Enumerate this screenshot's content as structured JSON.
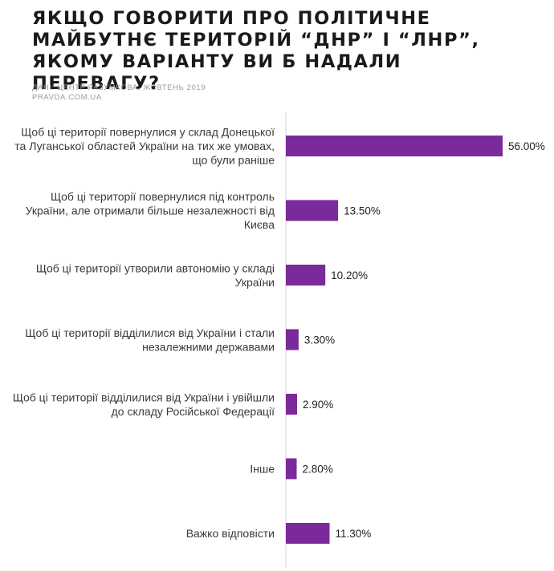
{
  "title": "ЯКЩО ГОВОРИТИ ПРО ПОЛІТИЧНЕ МАЙБУТНЄ ТЕРИТОРІЙ “ДНР” І “ЛНР”, ЯКОМУ ВАРІАНТУ ВИ Б НАДАЛИ ПЕРЕВАГУ?",
  "source": {
    "line1": "ДАНІ: ЦЕНТР РАЗУМКОВА, ЖОВТЕНЬ 2019",
    "line2": "PRAVDA.COM.UA"
  },
  "chart_data": {
    "type": "bar",
    "orientation": "horizontal",
    "bar_color": "#7b2a9c",
    "axis_color": "#d6d6d6",
    "categories": [
      [
        "Щоб ці території повернулися у склад Донецької",
        "та Луганської областей України на тих же умовах,",
        "що були раніше"
      ],
      [
        "Щоб ці території повернулися під контроль",
        "України, але отримали більше незалежності від",
        "Києва"
      ],
      [
        "Щоб ці території утворили автономію у складі",
        "України"
      ],
      [
        "Щоб ці території відділилися від України і стали",
        "незалежними державами"
      ],
      [
        "Щоб ці території відділилися від України і увійшли",
        "до складу Російської Федерації"
      ],
      [
        "Інше"
      ],
      [
        "Важко відповісти"
      ]
    ],
    "values": [
      56.0,
      13.5,
      10.2,
      3.3,
      2.9,
      2.8,
      11.3
    ],
    "value_labels": [
      "56.00%",
      "13.50%",
      "10.20%",
      "3.30%",
      "2.90%",
      "2.80%",
      "11.30%"
    ],
    "unit": "%"
  }
}
